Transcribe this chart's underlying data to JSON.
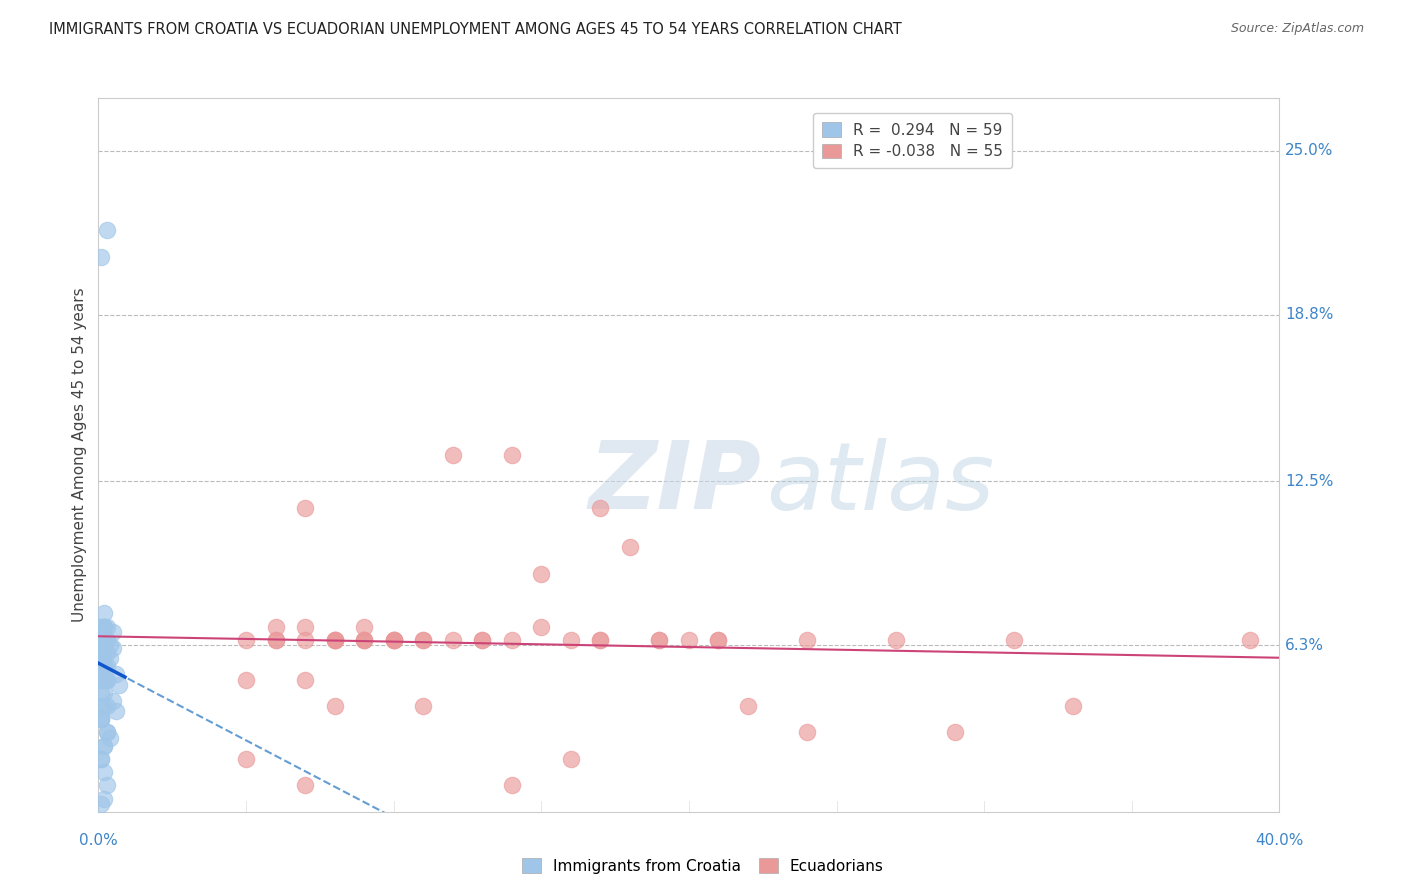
{
  "title": "IMMIGRANTS FROM CROATIA VS ECUADORIAN UNEMPLOYMENT AMONG AGES 45 TO 54 YEARS CORRELATION CHART",
  "source": "Source: ZipAtlas.com",
  "ylabel": "Unemployment Among Ages 45 to 54 years",
  "yticks_right": [
    "25.0%",
    "18.8%",
    "12.5%",
    "6.3%"
  ],
  "ytick_values": [
    0.25,
    0.188,
    0.125,
    0.063
  ],
  "xlim": [
    0.0,
    0.4
  ],
  "ylim": [
    0.0,
    0.27
  ],
  "legend_blue_label_r": "R =  0.294",
  "legend_blue_label_n": "N = 59",
  "legend_pink_label_r": "R = -0.038",
  "legend_pink_label_n": "N = 55",
  "blue_color": "#9fc5e8",
  "pink_color": "#ea9999",
  "blue_line_color": "#3d85c8",
  "blue_line_solid_color": "#1155cc",
  "pink_line_color": "#cc4477",
  "blue_scatter_x": [
    0.001,
    0.003,
    0.001,
    0.002,
    0.001,
    0.002,
    0.003,
    0.001,
    0.002,
    0.001,
    0.002,
    0.001,
    0.003,
    0.002,
    0.001,
    0.002,
    0.001,
    0.003,
    0.001,
    0.002,
    0.001,
    0.002,
    0.003,
    0.001,
    0.002,
    0.001,
    0.003,
    0.002,
    0.001,
    0.002,
    0.003,
    0.001,
    0.002,
    0.001,
    0.003,
    0.002,
    0.001,
    0.002,
    0.001,
    0.003,
    0.002,
    0.001,
    0.002,
    0.003,
    0.001,
    0.002,
    0.001,
    0.003,
    0.002,
    0.001,
    0.004,
    0.005,
    0.004,
    0.005,
    0.006,
    0.007,
    0.005,
    0.006,
    0.004
  ],
  "blue_scatter_y": [
    0.21,
    0.22,
    0.065,
    0.07,
    0.06,
    0.055,
    0.05,
    0.06,
    0.065,
    0.055,
    0.07,
    0.065,
    0.06,
    0.07,
    0.065,
    0.055,
    0.05,
    0.065,
    0.07,
    0.06,
    0.065,
    0.075,
    0.07,
    0.06,
    0.065,
    0.055,
    0.05,
    0.06,
    0.065,
    0.07,
    0.04,
    0.035,
    0.045,
    0.04,
    0.055,
    0.05,
    0.045,
    0.04,
    0.035,
    0.03,
    0.025,
    0.02,
    0.025,
    0.03,
    0.035,
    0.015,
    0.02,
    0.01,
    0.005,
    0.003,
    0.063,
    0.068,
    0.058,
    0.062,
    0.052,
    0.048,
    0.042,
    0.038,
    0.028
  ],
  "pink_scatter_x": [
    0.05,
    0.08,
    0.12,
    0.07,
    0.06,
    0.14,
    0.1,
    0.17,
    0.11,
    0.07,
    0.13,
    0.19,
    0.1,
    0.08,
    0.15,
    0.09,
    0.21,
    0.11,
    0.06,
    0.16,
    0.09,
    0.24,
    0.13,
    0.08,
    0.18,
    0.1,
    0.06,
    0.15,
    0.08,
    0.2,
    0.12,
    0.07,
    0.27,
    0.14,
    0.09,
    0.05,
    0.22,
    0.17,
    0.07,
    0.31,
    0.19,
    0.08,
    0.11,
    0.33,
    0.24,
    0.09,
    0.39,
    0.14,
    0.05,
    0.17,
    0.21,
    0.1,
    0.29,
    0.16,
    0.07
  ],
  "pink_scatter_y": [
    0.065,
    0.065,
    0.135,
    0.115,
    0.065,
    0.065,
    0.065,
    0.115,
    0.065,
    0.07,
    0.065,
    0.065,
    0.065,
    0.065,
    0.09,
    0.065,
    0.065,
    0.065,
    0.07,
    0.065,
    0.065,
    0.065,
    0.065,
    0.065,
    0.1,
    0.065,
    0.065,
    0.07,
    0.065,
    0.065,
    0.065,
    0.065,
    0.065,
    0.135,
    0.065,
    0.05,
    0.04,
    0.065,
    0.05,
    0.065,
    0.065,
    0.04,
    0.04,
    0.04,
    0.03,
    0.07,
    0.065,
    0.01,
    0.02,
    0.065,
    0.065,
    0.065,
    0.03,
    0.02,
    0.01
  ],
  "watermark_zip": "ZIP",
  "watermark_atlas": "atlas",
  "background_color": "#ffffff",
  "grid_color": "#bbbbbb"
}
